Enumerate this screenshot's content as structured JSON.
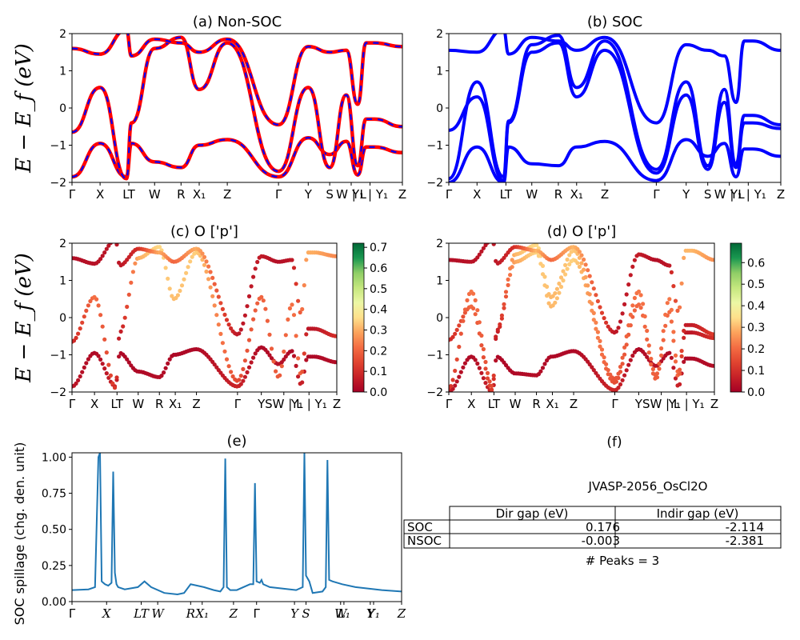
{
  "chart_data": [
    {
      "id": "a",
      "type": "line",
      "title": "(a) Non-SOC",
      "ylabel": "E − E_f (eV)",
      "ylim": [
        -2,
        2
      ],
      "yticks": [
        "2",
        "1",
        "0",
        "−1",
        "−2"
      ],
      "kpath": [
        "Γ",
        "X",
        "L",
        "T",
        "W",
        "R",
        "X1",
        "Z",
        "Γ",
        "Y",
        "S",
        "W",
        "L",
        "Y1",
        "Y1",
        "Z"
      ],
      "kticks": [
        "Γ",
        "X",
        "LT",
        "W",
        "R",
        "X₁",
        "Z",
        "Γ",
        "Y",
        "S",
        "W | L",
        "Y₁ | Y₁",
        "Z"
      ],
      "series": [
        {
          "band": 1,
          "colors": [
            "#ff0000",
            "#0000ff"
          ],
          "style": "solid+dashed",
          "values": [
            -1.85,
            -0.95,
            -1.85,
            -0.95,
            -1.45,
            -1.6,
            -1.0,
            -0.85,
            -1.85,
            -0.8,
            -1.25,
            -0.9,
            -1.8,
            -1.05,
            -1.05,
            -1.2
          ]
        },
        {
          "band": 2,
          "colors": [
            "#ff0000",
            "#0000ff"
          ],
          "style": "solid+dashed",
          "values": [
            -0.65,
            0.55,
            -1.9,
            -0.4,
            1.6,
            1.9,
            0.5,
            1.75,
            -1.7,
            0.55,
            -1.6,
            0.35,
            -1.55,
            -0.3,
            -0.3,
            -0.5
          ]
        },
        {
          "band": 3,
          "colors": [
            "#ff0000",
            "#0000ff"
          ],
          "style": "solid+dashed",
          "values": [
            1.6,
            1.45,
            2.1,
            1.4,
            1.85,
            1.75,
            1.5,
            1.85,
            -0.45,
            1.65,
            1.5,
            1.55,
            0.1,
            1.75,
            1.75,
            1.65
          ]
        }
      ]
    },
    {
      "id": "b",
      "type": "line",
      "title": "(b) SOC",
      "ylim": [
        -2,
        2
      ],
      "yticks": [
        "2",
        "1",
        "0",
        "−1",
        "−2"
      ],
      "kticks": [
        "Γ",
        "X",
        "LT",
        "W",
        "R",
        "X₁",
        "Z",
        "Γ",
        "Y",
        "S",
        "W | L",
        "Y₁ | Y₁",
        "Z"
      ],
      "series": [
        {
          "band": 1,
          "color": "#0000ff",
          "values": [
            -2.0,
            -1.05,
            -2.0,
            -1.05,
            -1.5,
            -1.55,
            -1.05,
            -0.9,
            -1.95,
            -0.85,
            -1.3,
            -0.95,
            -1.85,
            -1.1,
            -1.1,
            -1.3
          ]
        },
        {
          "band": 2,
          "color": "#0000ff",
          "values": [
            -0.6,
            0.3,
            -1.95,
            -0.4,
            1.5,
            1.75,
            0.3,
            1.55,
            -1.75,
            0.35,
            -1.65,
            0.15,
            -1.6,
            -0.4,
            -0.4,
            -0.55
          ]
        },
        {
          "band": 3,
          "color": "#0000ff",
          "values": [
            -1.9,
            0.7,
            -1.85,
            -0.35,
            1.7,
            1.95,
            0.55,
            1.8,
            -1.65,
            0.7,
            -1.55,
            0.5,
            -1.5,
            -0.2,
            -0.2,
            -0.45
          ]
        },
        {
          "band": 4,
          "color": "#0000ff",
          "values": [
            1.55,
            1.5,
            2.1,
            1.45,
            1.9,
            1.8,
            1.55,
            1.9,
            -0.4,
            1.7,
            1.55,
            1.4,
            0.15,
            1.8,
            1.8,
            1.55
          ]
        }
      ]
    },
    {
      "id": "c",
      "type": "scatter",
      "title": "(c)  O ['p']",
      "ylabel": "E − E_f (eV)",
      "ylim": [
        -2,
        2
      ],
      "yticks": [
        "2",
        "1",
        "0",
        "−1",
        "−2"
      ],
      "kticks": [
        "Γ",
        "X",
        "LT",
        "W",
        "R",
        "X₁",
        "Z",
        "Γ",
        "Y",
        "SW | L",
        "Y₁ | Y₁",
        "Z"
      ],
      "colorbar": {
        "cmap": "RdYlGn",
        "min": 0.0,
        "max": 0.72,
        "ticks": [
          "0.0",
          "0.1",
          "0.2",
          "0.3",
          "0.4",
          "0.5",
          "0.6",
          "0.7"
        ]
      },
      "bands": [
        {
          "band": 1,
          "values": [
            -1.85,
            -0.95,
            -1.85,
            -0.95,
            -1.45,
            -1.6,
            -1.0,
            -0.85,
            -1.85,
            -0.8,
            -1.25,
            -0.9,
            -1.8,
            -1.05,
            -1.05,
            -1.2
          ],
          "weights": [
            0.05,
            0.02,
            0.08,
            0.02,
            0.02,
            0.03,
            0.02,
            0.02,
            0.08,
            0.02,
            0.04,
            0.02,
            0.08,
            0.02,
            0.02,
            0.03
          ]
        },
        {
          "band": 2,
          "values": [
            -0.65,
            0.55,
            -1.9,
            -0.4,
            1.6,
            1.9,
            0.5,
            1.75,
            -1.7,
            0.55,
            -1.6,
            0.35,
            -1.55,
            -0.3,
            -0.3,
            -0.5
          ],
          "weights": [
            0.08,
            0.22,
            0.12,
            0.05,
            0.3,
            0.35,
            0.32,
            0.34,
            0.15,
            0.2,
            0.18,
            0.22,
            0.2,
            0.05,
            0.05,
            0.1
          ]
        },
        {
          "band": 3,
          "values": [
            1.6,
            1.45,
            2.1,
            1.4,
            1.85,
            1.75,
            1.5,
            1.85,
            -0.45,
            1.65,
            1.5,
            1.55,
            0.1,
            1.75,
            1.75,
            1.65
          ],
          "weights": [
            0.03,
            0.04,
            0.05,
            0.05,
            0.1,
            0.3,
            0.2,
            0.3,
            0.05,
            0.06,
            0.03,
            0.05,
            0.2,
            0.3,
            0.3,
            0.25
          ]
        }
      ]
    },
    {
      "id": "d",
      "type": "scatter",
      "title": "(d) O ['p']",
      "ylim": [
        -2,
        2
      ],
      "yticks": [
        "2",
        "1",
        "0",
        "−1",
        "−2"
      ],
      "kticks": [
        "Γ",
        "X",
        "LT",
        "W",
        "R",
        "X₁",
        "Z",
        "Γ",
        "Y",
        "SW | L",
        "Y₁ | Y₁",
        "Z"
      ],
      "colorbar": {
        "cmap": "RdYlGn",
        "min": 0.0,
        "max": 0.69,
        "ticks": [
          "0.0",
          "0.1",
          "0.2",
          "0.3",
          "0.4",
          "0.5",
          "0.6"
        ]
      },
      "bands": [
        {
          "band": 1,
          "values": [
            -2.0,
            -1.05,
            -2.0,
            -1.05,
            -1.5,
            -1.55,
            -1.05,
            -0.9,
            -1.95,
            -0.85,
            -1.3,
            -0.95,
            -1.85,
            -1.1,
            -1.1,
            -1.3
          ],
          "weights": [
            0.05,
            0.02,
            0.08,
            0.02,
            0.02,
            0.03,
            0.02,
            0.02,
            0.08,
            0.02,
            0.04,
            0.02,
            0.08,
            0.02,
            0.02,
            0.03
          ]
        },
        {
          "band": 2,
          "values": [
            -0.6,
            0.3,
            -1.95,
            -0.4,
            1.5,
            1.75,
            0.3,
            1.55,
            -1.75,
            0.35,
            -1.65,
            0.15,
            -1.6,
            -0.4,
            -0.4,
            -0.55
          ],
          "weights": [
            0.08,
            0.2,
            0.12,
            0.05,
            0.28,
            0.33,
            0.3,
            0.33,
            0.15,
            0.2,
            0.18,
            0.2,
            0.2,
            0.05,
            0.05,
            0.1
          ]
        },
        {
          "band": 3,
          "values": [
            -1.9,
            0.7,
            -1.85,
            -0.35,
            1.7,
            1.95,
            0.55,
            1.8,
            -1.65,
            0.7,
            -1.55,
            0.5,
            -1.5,
            -0.2,
            -0.2,
            -0.45
          ],
          "weights": [
            0.1,
            0.22,
            0.14,
            0.06,
            0.3,
            0.34,
            0.3,
            0.32,
            0.16,
            0.22,
            0.18,
            0.22,
            0.2,
            0.06,
            0.06,
            0.12
          ]
        },
        {
          "band": 4,
          "values": [
            1.55,
            1.5,
            2.1,
            1.45,
            1.9,
            1.8,
            1.55,
            1.9,
            -0.4,
            1.7,
            1.55,
            1.4,
            0.15,
            1.8,
            1.8,
            1.55
          ],
          "weights": [
            0.03,
            0.04,
            0.05,
            0.05,
            0.1,
            0.3,
            0.2,
            0.3,
            0.05,
            0.06,
            0.03,
            0.05,
            0.2,
            0.3,
            0.3,
            0.25
          ]
        }
      ]
    },
    {
      "id": "e",
      "type": "line",
      "title": "(e)",
      "ylabel": "SOC spillage (chg. den. unit)",
      "ylim": [
        0,
        1.03
      ],
      "yticks": [
        "0.00",
        "0.25",
        "0.50",
        "0.75",
        "1.00"
      ],
      "kticks": [
        "Γ",
        "X",
        "LT",
        "W",
        "R",
        "X₁",
        "Z",
        "Γ",
        "Y",
        "S",
        "W",
        "L₁",
        "Y",
        "Y₁",
        "Z"
      ],
      "series": [
        {
          "name": "",
          "color": "#1f77b4",
          "x": [
            0,
            0.05,
            0.07,
            0.08,
            0.085,
            0.09,
            0.1,
            0.11,
            0.12,
            0.125,
            0.13,
            0.135,
            0.14,
            0.16,
            0.2,
            0.22,
            0.24,
            0.28,
            0.32,
            0.34,
            0.36,
            0.4,
            0.43,
            0.45,
            0.46,
            0.465,
            0.47,
            0.48,
            0.5,
            0.54,
            0.55,
            0.555,
            0.56,
            0.57,
            0.575,
            0.58,
            0.6,
            0.64,
            0.68,
            0.7,
            0.705,
            0.71,
            0.72,
            0.73,
            0.76,
            0.77,
            0.775,
            0.78,
            0.79,
            0.82,
            0.86,
            0.9,
            0.94,
            1.0
          ],
          "values": [
            0.08,
            0.085,
            0.1,
            1.0,
            1.03,
            0.14,
            0.12,
            0.11,
            0.13,
            0.9,
            0.2,
            0.12,
            0.1,
            0.085,
            0.1,
            0.14,
            0.1,
            0.06,
            0.05,
            0.06,
            0.12,
            0.1,
            0.08,
            0.07,
            0.1,
            0.99,
            0.1,
            0.08,
            0.08,
            0.12,
            0.12,
            0.82,
            0.14,
            0.13,
            0.15,
            0.12,
            0.1,
            0.09,
            0.08,
            0.1,
            1.03,
            0.18,
            0.14,
            0.06,
            0.07,
            0.1,
            0.98,
            0.15,
            0.14,
            0.12,
            0.1,
            0.09,
            0.08,
            0.07
          ]
        }
      ]
    }
  ],
  "panel_f": {
    "title": "(f)",
    "material": "JVASP-2056_OsCl2O",
    "table": {
      "headers": [
        "",
        "Dir gap (eV)",
        "Indir gap (eV)"
      ],
      "rows": [
        [
          "SOC",
          "0.176",
          "-2.114"
        ],
        [
          "NSOC",
          "-0.003",
          "-2.381"
        ]
      ]
    },
    "peaks": "# Peaks = 3"
  },
  "colors": {
    "band_red": "#ff0000",
    "band_blue": "#0000ff",
    "spillage": "#1f77b4",
    "cmap_low": "#a50026",
    "cmap_mid": "#ffffbf",
    "cmap_high": "#006837"
  }
}
